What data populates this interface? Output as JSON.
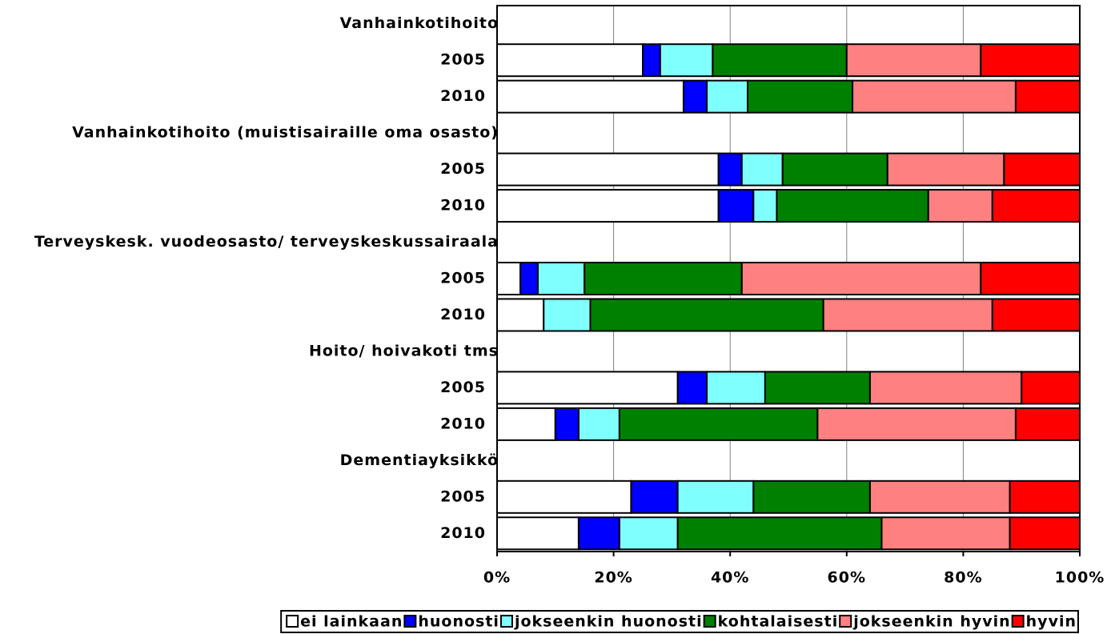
{
  "chart_data": {
    "type": "bar",
    "orientation": "horizontal",
    "stacked": true,
    "categories": [
      "Vanhainkotihoito",
      "2005",
      "2010",
      "Vanhainkotihoito (muistisairaille oma osasto)",
      "2005",
      "2010",
      "Terveyskesk. vuodeosasto/ terveyskeskussairaala",
      "2005",
      "2010",
      "Hoito/ hoivakoti tms",
      "2005",
      "2010",
      "Dementiayksikkö",
      "2005",
      "2010"
    ],
    "series": [
      {
        "name": "ei lainkaan",
        "color": "#ffffff",
        "values": [
          null,
          25,
          32,
          null,
          38,
          38,
          null,
          4,
          8,
          null,
          31,
          10,
          null,
          23,
          14
        ]
      },
      {
        "name": "huonosti",
        "color": "#0000ff",
        "values": [
          null,
          3,
          4,
          null,
          4,
          6,
          null,
          3,
          0,
          null,
          5,
          4,
          null,
          8,
          7
        ]
      },
      {
        "name": "jokseenkin huonosti",
        "color": "#80ffff",
        "values": [
          null,
          9,
          7,
          null,
          7,
          4,
          null,
          8,
          8,
          null,
          10,
          7,
          null,
          13,
          10
        ]
      },
      {
        "name": "kohtalaisesti",
        "color": "#008000",
        "values": [
          null,
          23,
          18,
          null,
          18,
          26,
          null,
          27,
          40,
          null,
          18,
          34,
          null,
          20,
          35
        ]
      },
      {
        "name": "jokseenkin hyvin",
        "color": "#ff8080",
        "values": [
          null,
          23,
          28,
          null,
          20,
          11,
          null,
          41,
          29,
          null,
          26,
          34,
          null,
          24,
          22
        ]
      },
      {
        "name": "hyvin",
        "color": "#ff0000",
        "values": [
          null,
          17,
          11,
          null,
          13,
          15,
          null,
          17,
          15,
          null,
          10,
          11,
          null,
          12,
          12
        ]
      }
    ],
    "xlim": [
      0,
      100
    ],
    "xticks": [
      {
        "value": 0,
        "label": "0%"
      },
      {
        "value": 20,
        "label": "20%"
      },
      {
        "value": 40,
        "label": "40%"
      },
      {
        "value": 60,
        "label": "60%"
      },
      {
        "value": 80,
        "label": "80%"
      },
      {
        "value": 100,
        "label": "100%"
      }
    ],
    "grid": true,
    "legend": "bottom"
  }
}
